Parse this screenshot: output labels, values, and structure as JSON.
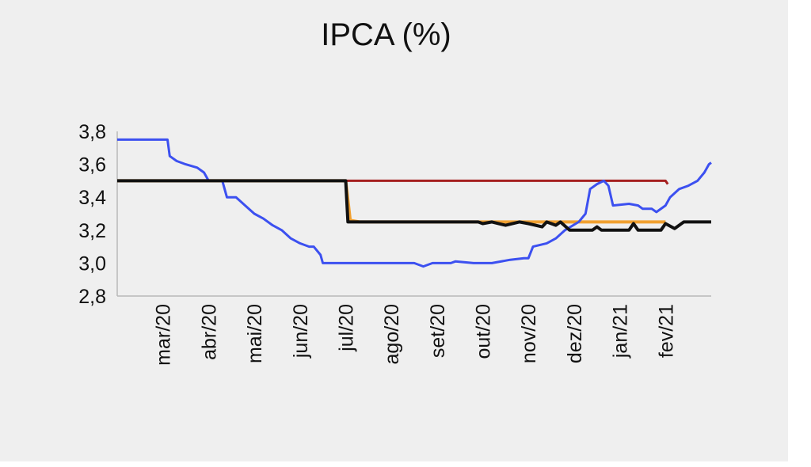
{
  "chart_data": {
    "type": "line",
    "title": "IPCA (%)",
    "xlabel": "",
    "ylabel": "",
    "ylim": [
      2.8,
      3.8
    ],
    "yticks": [
      "3,8",
      "3,6",
      "3,4",
      "3,2",
      "3,0",
      "2,8"
    ],
    "yticks_values": [
      3.8,
      3.6,
      3.4,
      3.2,
      3.0,
      2.8
    ],
    "x_categories": [
      "mar/20",
      "abr/20",
      "mai/20",
      "jun/20",
      "jul/20",
      "ago/20",
      "set/20",
      "out/20",
      "nov/20",
      "dez/20",
      "jan/21",
      "fev/21"
    ],
    "grid": false,
    "legend": "none",
    "series": [
      {
        "color": "#f0a030",
        "width": 4,
        "points": [
          [
            -1.0,
            3.5
          ],
          [
            4.0,
            3.5
          ],
          [
            4.1,
            3.26
          ],
          [
            4.3,
            3.25
          ],
          [
            8.1,
            3.25
          ],
          [
            10.8,
            3.25
          ],
          [
            11.0,
            3.25
          ]
        ]
      },
      {
        "color": "#a52020",
        "width": 3,
        "points": [
          [
            4.0,
            3.5
          ],
          [
            11.0,
            3.5
          ],
          [
            11.05,
            3.48
          ]
        ]
      },
      {
        "color": "#3c50f0",
        "width": 3,
        "points": [
          [
            -1.0,
            3.75
          ],
          [
            0.1,
            3.75
          ],
          [
            0.15,
            3.65
          ],
          [
            0.3,
            3.62
          ],
          [
            0.5,
            3.6
          ],
          [
            0.75,
            3.58
          ],
          [
            0.9,
            3.55
          ],
          [
            1.0,
            3.5
          ],
          [
            1.3,
            3.5
          ],
          [
            1.4,
            3.4
          ],
          [
            1.6,
            3.4
          ],
          [
            1.8,
            3.35
          ],
          [
            2.0,
            3.3
          ],
          [
            2.2,
            3.27
          ],
          [
            2.4,
            3.23
          ],
          [
            2.6,
            3.2
          ],
          [
            2.8,
            3.15
          ],
          [
            3.0,
            3.12
          ],
          [
            3.2,
            3.1
          ],
          [
            3.3,
            3.1
          ],
          [
            3.45,
            3.05
          ],
          [
            3.5,
            3.0
          ],
          [
            4.5,
            3.0
          ],
          [
            5.0,
            3.0
          ],
          [
            5.5,
            3.0
          ],
          [
            5.7,
            2.98
          ],
          [
            5.9,
            3.0
          ],
          [
            6.3,
            3.0
          ],
          [
            6.4,
            3.01
          ],
          [
            6.8,
            3.0
          ],
          [
            7.2,
            3.0
          ],
          [
            7.6,
            3.02
          ],
          [
            7.9,
            3.03
          ],
          [
            8.0,
            3.03
          ],
          [
            8.1,
            3.1
          ],
          [
            8.4,
            3.12
          ],
          [
            8.6,
            3.15
          ],
          [
            8.8,
            3.2
          ],
          [
            9.1,
            3.25
          ],
          [
            9.25,
            3.3
          ],
          [
            9.35,
            3.45
          ],
          [
            9.5,
            3.48
          ],
          [
            9.65,
            3.5
          ],
          [
            9.75,
            3.47
          ],
          [
            9.85,
            3.35
          ],
          [
            10.2,
            3.36
          ],
          [
            10.4,
            3.35
          ],
          [
            10.5,
            3.33
          ],
          [
            10.7,
            3.33
          ],
          [
            10.8,
            3.31
          ],
          [
            11.0,
            3.35
          ],
          [
            11.1,
            3.4
          ],
          [
            11.3,
            3.45
          ],
          [
            11.5,
            3.47
          ],
          [
            11.7,
            3.5
          ],
          [
            11.85,
            3.55
          ],
          [
            11.95,
            3.6
          ],
          [
            12.0,
            3.61
          ]
        ]
      },
      {
        "color": "#111111",
        "width": 4,
        "points": [
          [
            -1.0,
            3.5
          ],
          [
            4.0,
            3.5
          ],
          [
            4.05,
            3.25
          ],
          [
            6.9,
            3.25
          ],
          [
            7.0,
            3.24
          ],
          [
            7.2,
            3.25
          ],
          [
            7.5,
            3.23
          ],
          [
            7.8,
            3.25
          ],
          [
            8.0,
            3.24
          ],
          [
            8.3,
            3.22
          ],
          [
            8.4,
            3.25
          ],
          [
            8.6,
            3.23
          ],
          [
            8.7,
            3.25
          ],
          [
            8.9,
            3.2
          ],
          [
            9.4,
            3.2
          ],
          [
            9.5,
            3.22
          ],
          [
            9.6,
            3.2
          ],
          [
            10.2,
            3.2
          ],
          [
            10.3,
            3.24
          ],
          [
            10.4,
            3.2
          ],
          [
            10.9,
            3.2
          ],
          [
            11.0,
            3.24
          ],
          [
            11.2,
            3.21
          ],
          [
            11.4,
            3.25
          ],
          [
            12.0,
            3.25
          ]
        ]
      }
    ]
  }
}
